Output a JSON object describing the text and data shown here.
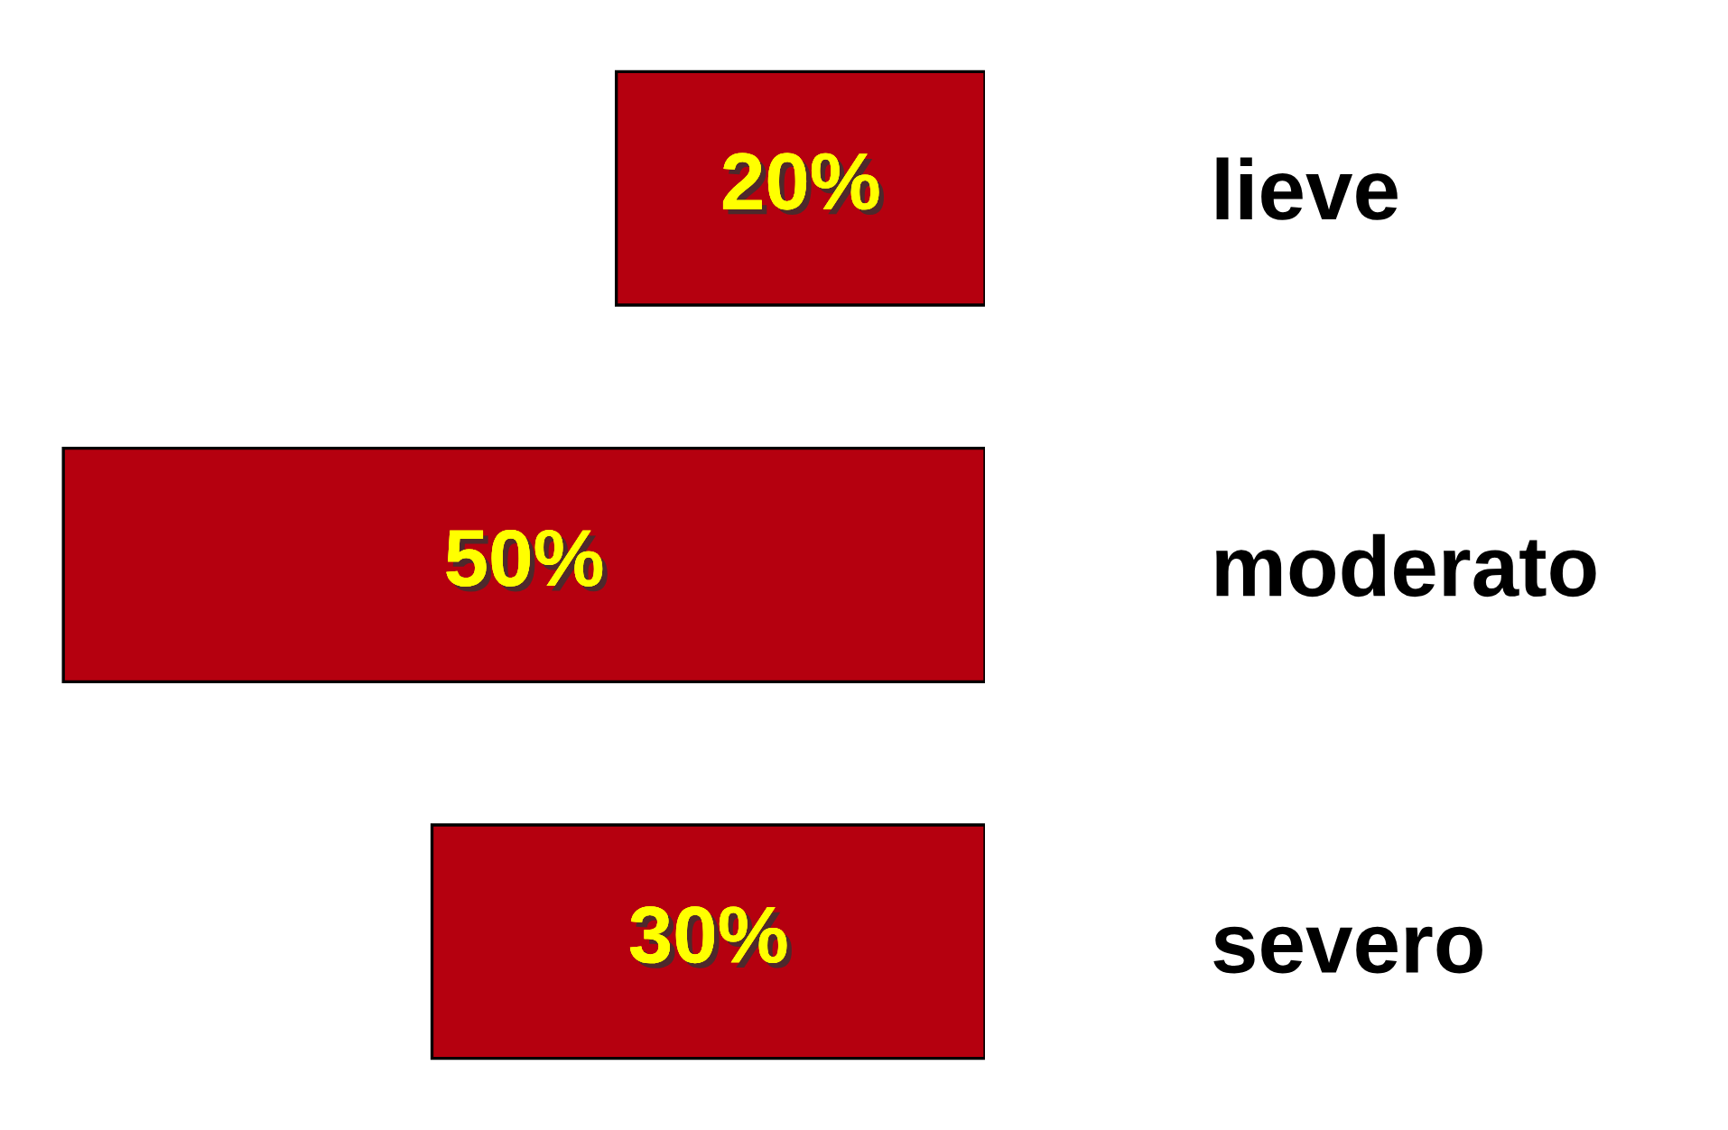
{
  "chart_data": {
    "type": "bar",
    "orientation": "horizontal",
    "categories": [
      "lieve",
      "moderato",
      "severo"
    ],
    "values": [
      20,
      50,
      30
    ],
    "color": "#b5000f",
    "value_labels": [
      "20%",
      "50%",
      "30%"
    ],
    "tick_labels": "y",
    "grid": false,
    "legend": false
  }
}
